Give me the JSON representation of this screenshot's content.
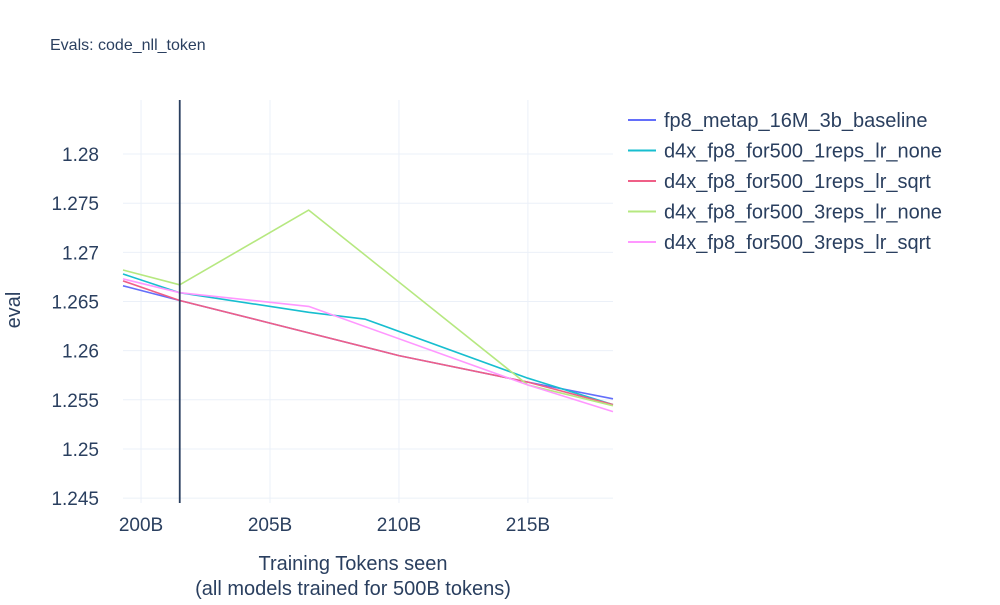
{
  "chart_data": {
    "type": "line",
    "title": "Evals: code_nll_token",
    "xlabel": [
      "Training Tokens seen",
      "(all models trained for 500B tokens)"
    ],
    "ylabel": "eval",
    "xlim": [
      199.3,
      218.3
    ],
    "ylim": [
      1.2445,
      1.2855
    ],
    "x_ticks": [
      200,
      205,
      210,
      215
    ],
    "x_tick_labels": [
      "200B",
      "205B",
      "210B",
      "215B"
    ],
    "y_ticks": [
      1.245,
      1.25,
      1.255,
      1.26,
      1.265,
      1.27,
      1.275,
      1.28
    ],
    "y_tick_labels": [
      "1.245",
      "1.25",
      "1.255",
      "1.26",
      "1.265",
      "1.27",
      "1.275",
      "1.28"
    ],
    "vertical_line_x": 201.5,
    "grid": true,
    "legend_position": "right",
    "series": [
      {
        "name": "fp8_metap_16M_3b_baseline",
        "color": "#636efa",
        "x": [
          199.3,
          201.5,
          205.0,
          210.0,
          215.0,
          218.3
        ],
        "y": [
          1.2666,
          1.2651,
          1.2628,
          1.2595,
          1.2568,
          1.2551
        ]
      },
      {
        "name": "d4x_fp8_for500_1reps_lr_none",
        "color": "#17becf",
        "x": [
          199.3,
          201.5,
          206.5,
          208.7,
          215.0,
          218.3
        ],
        "y": [
          1.2678,
          1.2659,
          1.2639,
          1.2632,
          1.2572,
          1.2545
        ]
      },
      {
        "name": "d4x_fp8_for500_1reps_lr_sqrt",
        "color": "#ef5f87",
        "x": [
          199.3,
          201.5,
          205.0,
          210.0,
          215.0,
          218.3
        ],
        "y": [
          1.2671,
          1.2651,
          1.2628,
          1.2595,
          1.2568,
          1.2545
        ]
      },
      {
        "name": "d4x_fp8_for500_3reps_lr_none",
        "color": "#b6e880",
        "x": [
          199.3,
          201.5,
          206.5,
          215.0,
          218.3
        ],
        "y": [
          1.2682,
          1.2667,
          1.2743,
          1.2565,
          1.2544
        ]
      },
      {
        "name": "d4x_fp8_for500_3reps_lr_sqrt",
        "color": "#ff97ff",
        "x": [
          199.3,
          201.5,
          206.5,
          215.0,
          218.3
        ],
        "y": [
          1.2673,
          1.2659,
          1.2645,
          1.2565,
          1.2538
        ]
      }
    ]
  }
}
